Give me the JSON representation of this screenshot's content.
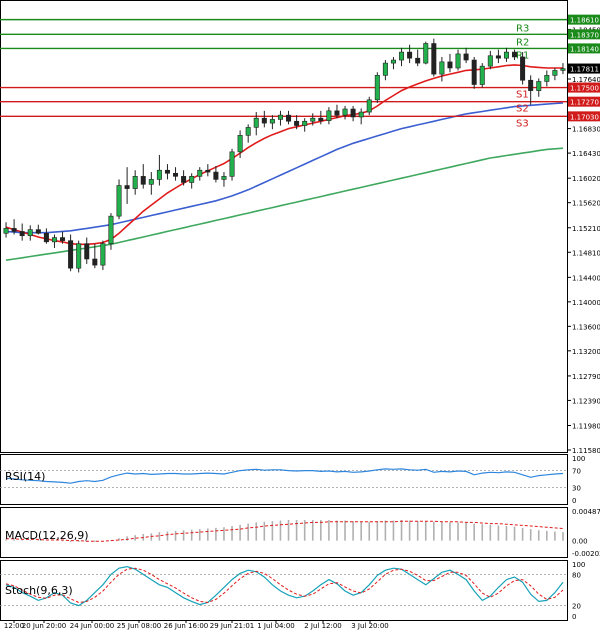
{
  "chart_data": {
    "type": "candlestick",
    "y_ticks": [
      "1.18610",
      "1.18450",
      "1.18140",
      "1.17640",
      "1.17550",
      "1.16830",
      "1.16430",
      "1.16020",
      "1.15620",
      "1.15210",
      "1.14810",
      "1.14400",
      "1.14000",
      "1.13600",
      "1.13200",
      "1.12790",
      "1.12390",
      "1.11980",
      "1.11580"
    ],
    "x_ticks": [
      "12:00",
      "20 Jun 20:00",
      "24 Jun 00:00",
      "25 Jun 08:00",
      "26 Jun 16:00",
      "29 Jun 21:01",
      "1 Jul 04:00",
      "2 Jul 12:00",
      "3 Jul 20:00"
    ],
    "ylim": [
      1.1158,
      1.188
    ],
    "levels": [
      {
        "label": "R3",
        "value": 1.1837,
        "tag": "1.18370",
        "color": "#1a8a1a"
      },
      {
        "label": "R2",
        "value": 1.1814,
        "tag": "1.18140",
        "color": "#1a8a1a"
      },
      {
        "label": "R1",
        "value": 1.1814,
        "tag": "1.18140",
        "color": "#1a8a1a"
      },
      {
        "label": "",
        "value": 1.1861,
        "tag": "1.18610",
        "color": "#1a8a1a"
      },
      {
        "label": "S1",
        "value": 1.175,
        "tag": "1.17500",
        "color": "#d11b1b"
      },
      {
        "label": "S2",
        "value": 1.1727,
        "tag": "1.17270",
        "color": "#d11b1b"
      },
      {
        "label": "S3",
        "value": 1.1703,
        "tag": "1.17030",
        "color": "#d11b1b"
      }
    ],
    "current_price_tag": "1.17811",
    "current_price": 1.17811,
    "candles": [
      [
        1.1512,
        1.153,
        1.1505,
        1.152
      ],
      [
        1.152,
        1.1535,
        1.151,
        1.1515
      ],
      [
        1.1515,
        1.1528,
        1.15,
        1.1508
      ],
      [
        1.1508,
        1.1525,
        1.15,
        1.1518
      ],
      [
        1.1518,
        1.1526,
        1.151,
        1.1512
      ],
      [
        1.1512,
        1.152,
        1.1495,
        1.1498
      ],
      [
        1.1498,
        1.151,
        1.1488,
        1.1505
      ],
      [
        1.1505,
        1.1515,
        1.1495,
        1.15
      ],
      [
        1.15,
        1.151,
        1.145,
        1.1455
      ],
      [
        1.1455,
        1.15,
        1.1448,
        1.1495
      ],
      [
        1.1495,
        1.1505,
        1.1462,
        1.147
      ],
      [
        1.147,
        1.1495,
        1.1455,
        1.146
      ],
      [
        1.146,
        1.15,
        1.1452,
        1.1495
      ],
      [
        1.1495,
        1.1545,
        1.1485,
        1.154
      ],
      [
        1.154,
        1.16,
        1.1535,
        1.159
      ],
      [
        1.159,
        1.162,
        1.156,
        1.1585
      ],
      [
        1.1585,
        1.1615,
        1.1575,
        1.1605
      ],
      [
        1.1605,
        1.1625,
        1.1585,
        1.1592
      ],
      [
        1.1592,
        1.1612,
        1.1575,
        1.16
      ],
      [
        1.16,
        1.164,
        1.159,
        1.1615
      ],
      [
        1.1615,
        1.1625,
        1.16,
        1.161
      ],
      [
        1.161,
        1.162,
        1.1598,
        1.1605
      ],
      [
        1.1605,
        1.1615,
        1.159,
        1.1595
      ],
      [
        1.1595,
        1.161,
        1.1585,
        1.1605
      ],
      [
        1.1605,
        1.162,
        1.1598,
        1.1615
      ],
      [
        1.1615,
        1.1625,
        1.1605,
        1.1612
      ],
      [
        1.1612,
        1.1622,
        1.1595,
        1.16
      ],
      [
        1.16,
        1.1612,
        1.1588,
        1.1605
      ],
      [
        1.1605,
        1.165,
        1.1598,
        1.1645
      ],
      [
        1.1645,
        1.168,
        1.1635,
        1.1672
      ],
      [
        1.1672,
        1.169,
        1.166,
        1.1685
      ],
      [
        1.1685,
        1.171,
        1.1672,
        1.17
      ],
      [
        1.17,
        1.1712,
        1.1685,
        1.1692
      ],
      [
        1.1692,
        1.1705,
        1.1682,
        1.1698
      ],
      [
        1.1698,
        1.1712,
        1.1688,
        1.1705
      ],
      [
        1.1705,
        1.1712,
        1.169,
        1.1695
      ],
      [
        1.1695,
        1.1705,
        1.1682,
        1.1688
      ],
      [
        1.1688,
        1.17,
        1.1678,
        1.1695
      ],
      [
        1.1695,
        1.1708,
        1.1688,
        1.17
      ],
      [
        1.17,
        1.1712,
        1.169,
        1.1696
      ],
      [
        1.1696,
        1.1718,
        1.169,
        1.1712
      ],
      [
        1.1712,
        1.1722,
        1.17,
        1.1705
      ],
      [
        1.1705,
        1.172,
        1.1698,
        1.1715
      ],
      [
        1.1715,
        1.172,
        1.1695,
        1.1702
      ],
      [
        1.1702,
        1.1716,
        1.169,
        1.171
      ],
      [
        1.171,
        1.1735,
        1.1705,
        1.173
      ],
      [
        1.173,
        1.1775,
        1.1725,
        1.177
      ],
      [
        1.177,
        1.1795,
        1.1762,
        1.179
      ],
      [
        1.179,
        1.18,
        1.178,
        1.1795
      ],
      [
        1.1795,
        1.1815,
        1.1785,
        1.1808
      ],
      [
        1.1808,
        1.182,
        1.179,
        1.1798
      ],
      [
        1.1798,
        1.1812,
        1.1785,
        1.179
      ],
      [
        1.179,
        1.1825,
        1.1788,
        1.1822
      ],
      [
        1.1822,
        1.183,
        1.1768,
        1.1772
      ],
      [
        1.1772,
        1.18,
        1.176,
        1.1792
      ],
      [
        1.1792,
        1.1805,
        1.1775,
        1.1782
      ],
      [
        1.1782,
        1.1812,
        1.1778,
        1.1805
      ],
      [
        1.1805,
        1.1815,
        1.179,
        1.1795
      ],
      [
        1.1795,
        1.18,
        1.1748,
        1.1755
      ],
      [
        1.1755,
        1.179,
        1.175,
        1.1785
      ],
      [
        1.1785,
        1.181,
        1.178,
        1.1802
      ],
      [
        1.1802,
        1.1812,
        1.179,
        1.1798
      ],
      [
        1.1798,
        1.1815,
        1.1792,
        1.1808
      ],
      [
        1.1808,
        1.1812,
        1.1795,
        1.18
      ],
      [
        1.18,
        1.1808,
        1.1755,
        1.1762
      ],
      [
        1.1762,
        1.177,
        1.1722,
        1.1745
      ],
      [
        1.1745,
        1.1765,
        1.1735,
        1.176
      ],
      [
        1.176,
        1.1778,
        1.1752,
        1.177
      ],
      [
        1.177,
        1.1782,
        1.1762,
        1.1778
      ],
      [
        1.1778,
        1.179,
        1.1772,
        1.1781
      ]
    ],
    "ma_red": [
      1.1522,
      1.1518,
      1.1514,
      1.151,
      1.1506,
      1.1503,
      1.15,
      1.1498,
      1.1495,
      1.1494,
      1.1494,
      1.1495,
      1.1497,
      1.1502,
      1.1512,
      1.1524,
      1.1536,
      1.1548,
      1.1558,
      1.1568,
      1.1578,
      1.1586,
      1.1594,
      1.1601,
      1.1608,
      1.1614,
      1.162,
      1.1626,
      1.1634,
      1.1643,
      1.1652,
      1.166,
      1.1667,
      1.1673,
      1.1678,
      1.1683,
      1.1686,
      1.1689,
      1.1692,
      1.1695,
      1.1698,
      1.1701,
      1.1704,
      1.1706,
      1.1708,
      1.1712,
      1.172,
      1.1729,
      1.1737,
      1.1745,
      1.1751,
      1.1756,
      1.1761,
      1.1765,
      1.1769,
      1.1772,
      1.1775,
      1.1778,
      1.1779,
      1.178,
      1.1782,
      1.1784,
      1.1786,
      1.1787,
      1.1786,
      1.1784,
      1.1783,
      1.1782,
      1.1782,
      1.1782
    ],
    "ma_blue": [
      1.1515,
      1.1514,
      1.1513,
      1.1513,
      1.1513,
      1.1513,
      1.1514,
      1.1515,
      1.1516,
      1.1518,
      1.152,
      1.1522,
      1.1524,
      1.1526,
      1.1529,
      1.1532,
      1.1535,
      1.1538,
      1.1541,
      1.1544,
      1.1547,
      1.155,
      1.1553,
      1.1556,
      1.1559,
      1.1562,
      1.1565,
      1.1569,
      1.1573,
      1.1578,
      1.1583,
      1.1589,
      1.1595,
      1.1601,
      1.1607,
      1.1613,
      1.1619,
      1.1625,
      1.1631,
      1.1637,
      1.1643,
      1.1649,
      1.1654,
      1.1659,
      1.1663,
      1.1667,
      1.1671,
      1.1675,
      1.1679,
      1.1683,
      1.1686,
      1.1689,
      1.1692,
      1.1695,
      1.1698,
      1.1701,
      1.1704,
      1.1707,
      1.1709,
      1.1711,
      1.1713,
      1.1715,
      1.1717,
      1.1719,
      1.172,
      1.1721,
      1.1722,
      1.1723,
      1.1724,
      1.1725
    ],
    "ma_green": [
      1.1468,
      1.147,
      1.1472,
      1.1474,
      1.1476,
      1.1478,
      1.148,
      1.1482,
      1.1484,
      1.1486,
      1.1488,
      1.149,
      1.1492,
      1.1494,
      1.1497,
      1.15,
      1.1503,
      1.1506,
      1.1509,
      1.1512,
      1.1515,
      1.1518,
      1.1521,
      1.1524,
      1.1527,
      1.153,
      1.1533,
      1.1536,
      1.1539,
      1.1542,
      1.1545,
      1.1548,
      1.1551,
      1.1554,
      1.1557,
      1.156,
      1.1563,
      1.1566,
      1.1569,
      1.1572,
      1.1575,
      1.1578,
      1.1581,
      1.1584,
      1.1587,
      1.159,
      1.1593,
      1.1596,
      1.1599,
      1.1602,
      1.1605,
      1.1608,
      1.1611,
      1.1614,
      1.1617,
      1.162,
      1.1623,
      1.1626,
      1.1629,
      1.1632,
      1.1635,
      1.1637,
      1.1639,
      1.1641,
      1.1643,
      1.1645,
      1.1647,
      1.1649,
      1.165,
      1.1651
    ],
    "rsi": {
      "label": "RSI(14)",
      "ticks": [
        "100",
        "70",
        "30",
        "0"
      ],
      "ylim": [
        0,
        100
      ],
      "values": [
        52,
        50,
        48,
        47,
        46,
        44,
        43,
        42,
        40,
        44,
        46,
        44,
        47,
        55,
        60,
        64,
        62,
        63,
        61,
        62,
        63,
        63,
        62,
        62,
        63,
        64,
        63,
        62,
        66,
        70,
        72,
        73,
        71,
        72,
        72,
        70,
        69,
        70,
        70,
        68,
        69,
        67,
        68,
        66,
        67,
        69,
        72,
        74,
        73,
        74,
        72,
        71,
        73,
        66,
        68,
        67,
        69,
        68,
        60,
        64,
        66,
        65,
        67,
        66,
        60,
        54,
        58,
        60,
        62,
        63
      ]
    },
    "macd": {
      "label": "MACD(12,26,9)",
      "ticks": [
        "0.00487",
        "0.00",
        "-0.00203"
      ],
      "ylim": [
        -0.00203,
        0.00487
      ],
      "hist": [
        0.0002,
        0.0002,
        0.0001,
        0.0001,
        0.0001,
        0.0,
        0.0,
        -0.0001,
        -0.0002,
        -0.0002,
        -0.0002,
        -0.0002,
        -0.0001,
        0.0001,
        0.0004,
        0.0007,
        0.0009,
        0.0011,
        0.0012,
        0.0014,
        0.0015,
        0.0016,
        0.0017,
        0.0018,
        0.0019,
        0.002,
        0.0021,
        0.0022,
        0.0024,
        0.0026,
        0.0028,
        0.003,
        0.0031,
        0.0032,
        0.0033,
        0.0034,
        0.0034,
        0.0034,
        0.0034,
        0.0034,
        0.0034,
        0.0033,
        0.0033,
        0.0032,
        0.0031,
        0.0031,
        0.0032,
        0.0033,
        0.0033,
        0.0034,
        0.0033,
        0.0032,
        0.0032,
        0.0031,
        0.0031,
        0.003,
        0.003,
        0.003,
        0.0028,
        0.0027,
        0.0026,
        0.0025,
        0.0024,
        0.0023,
        0.0021,
        0.0019,
        0.0017,
        0.0016,
        0.0015,
        0.0014
      ],
      "signal": [
        0.0003,
        0.0003,
        0.0002,
        0.0002,
        0.0002,
        0.0001,
        0.0001,
        0.0001,
        0.0,
        0.0,
        -0.0001,
        -0.0001,
        -0.0001,
        0.0,
        0.0001,
        0.0002,
        0.0004,
        0.0005,
        0.0007,
        0.0008,
        0.001,
        0.0011,
        0.0012,
        0.0013,
        0.0014,
        0.0015,
        0.0016,
        0.0017,
        0.0018,
        0.0019,
        0.0021,
        0.0022,
        0.0024,
        0.0025,
        0.0026,
        0.0027,
        0.0028,
        0.0029,
        0.003,
        0.003,
        0.0031,
        0.0031,
        0.0031,
        0.0031,
        0.0031,
        0.0031,
        0.0031,
        0.0031,
        0.0031,
        0.0032,
        0.0032,
        0.0032,
        0.0032,
        0.0032,
        0.0031,
        0.0031,
        0.0031,
        0.003,
        0.003,
        0.0029,
        0.0028,
        0.0028,
        0.0027,
        0.0026,
        0.0025,
        0.0024,
        0.0023,
        0.0022,
        0.0021,
        0.002
      ]
    },
    "stoch": {
      "label": "Stoch(9,6,3)",
      "ticks": [
        "100",
        "80",
        "20",
        "0"
      ],
      "ylim": [
        0,
        100
      ],
      "k": [
        60,
        55,
        45,
        38,
        30,
        35,
        45,
        40,
        25,
        20,
        30,
        45,
        60,
        80,
        92,
        95,
        90,
        80,
        70,
        60,
        55,
        45,
        35,
        28,
        22,
        26,
        40,
        55,
        70,
        82,
        88,
        85,
        75,
        60,
        48,
        40,
        35,
        38,
        48,
        60,
        70,
        62,
        48,
        40,
        45,
        60,
        78,
        88,
        92,
        90,
        80,
        70,
        60,
        72,
        84,
        88,
        80,
        70,
        48,
        30,
        38,
        55,
        70,
        75,
        65,
        42,
        28,
        30,
        45,
        65
      ],
      "d": [
        62,
        58,
        50,
        42,
        36,
        34,
        40,
        41,
        33,
        26,
        28,
        36,
        48,
        65,
        80,
        90,
        92,
        88,
        80,
        70,
        62,
        54,
        44,
        35,
        28,
        26,
        32,
        44,
        58,
        72,
        82,
        86,
        82,
        72,
        60,
        50,
        42,
        38,
        42,
        52,
        62,
        64,
        56,
        48,
        44,
        52,
        66,
        80,
        88,
        90,
        86,
        78,
        68,
        68,
        76,
        84,
        84,
        78,
        62,
        44,
        36,
        44,
        58,
        68,
        70,
        58,
        42,
        32,
        36,
        50
      ]
    }
  }
}
